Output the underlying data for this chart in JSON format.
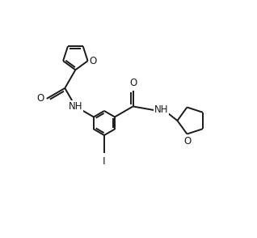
{
  "background_color": "#ffffff",
  "line_color": "#1a1a1a",
  "line_width": 1.4,
  "font_size": 8.5,
  "figsize": [
    3.18,
    2.94
  ],
  "dpi": 100,
  "xlim": [
    0,
    9.5
  ],
  "ylim": [
    0,
    8.8
  ]
}
